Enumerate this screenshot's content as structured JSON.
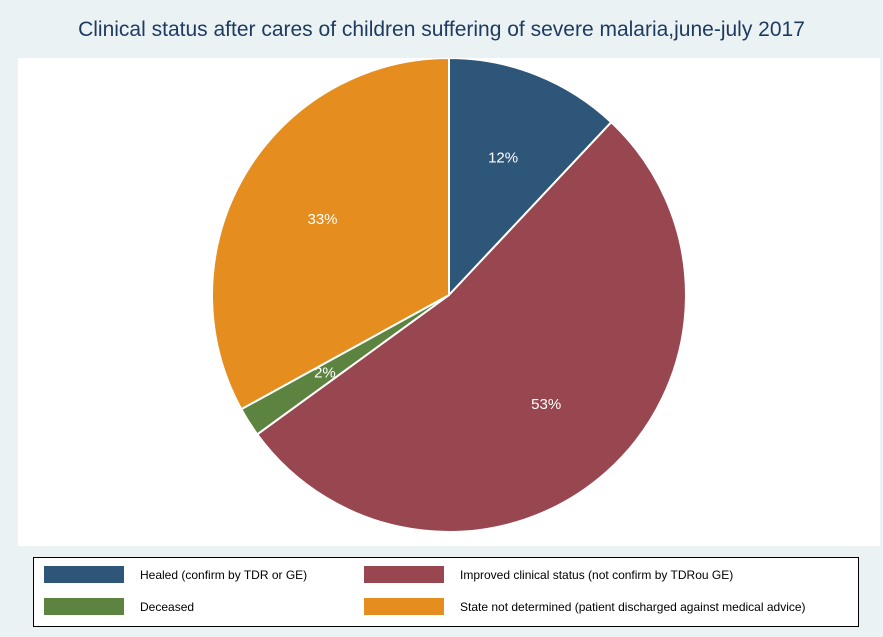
{
  "chart_data": {
    "type": "pie",
    "title": "Clinical status after cares of children suffering of severe malaria,june-july 2017",
    "slices": [
      {
        "label": "Healed (confirm by TDR or GE)",
        "value": 12,
        "value_label": "12%",
        "color": "#2d5678"
      },
      {
        "label": "Improved clinical status (not confirm by TDRou GE)",
        "value": 53,
        "value_label": "53%",
        "color": "#98464f"
      },
      {
        "label": "Deceased",
        "value": 2,
        "value_label": "2%",
        "color": "#5c8340"
      },
      {
        "label": "State not determined (patient discharged against medical advice)",
        "value": 33,
        "value_label": "33%",
        "color": "#e58d1e"
      }
    ],
    "start": "12 o'clock",
    "direction": "clockwise",
    "legend_position": "bottom"
  }
}
